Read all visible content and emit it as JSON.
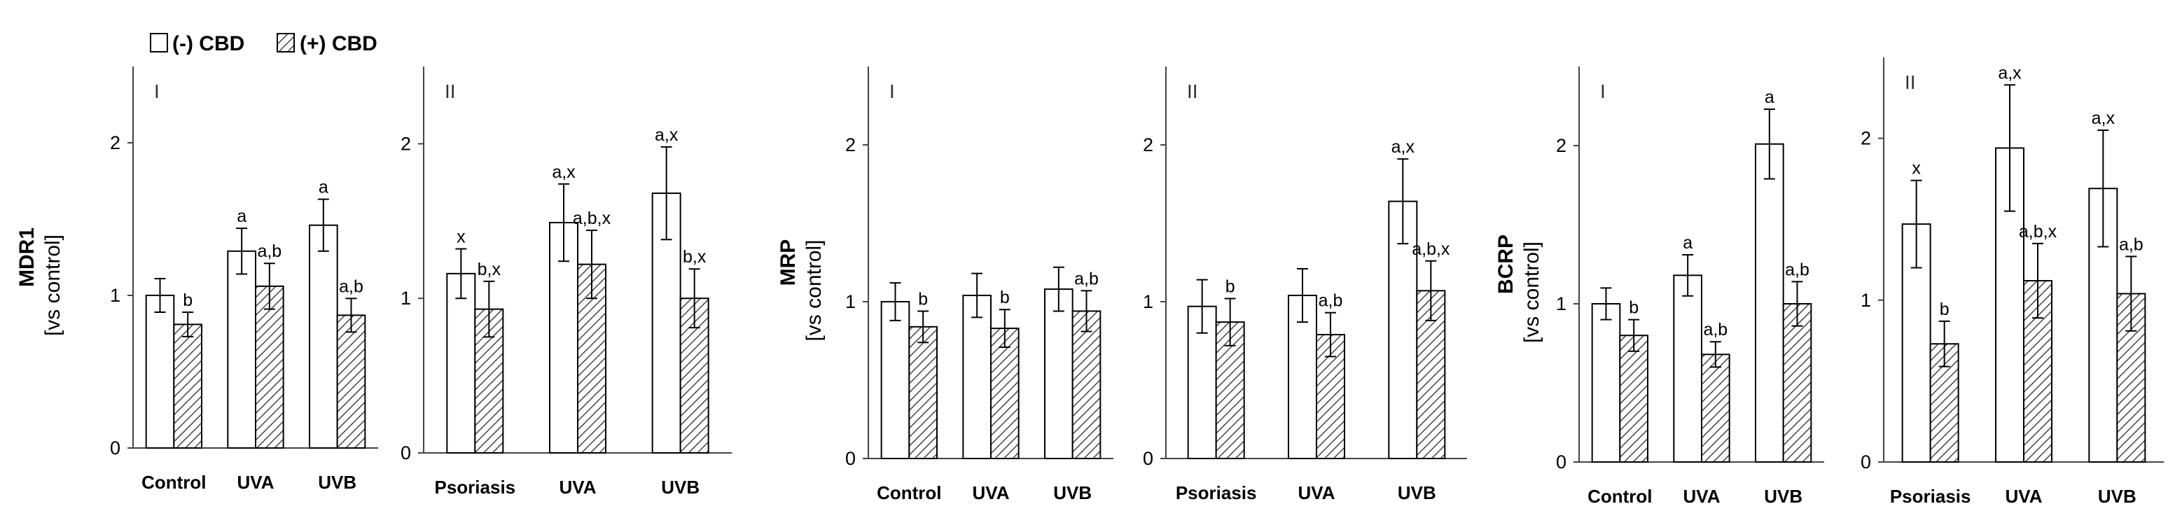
{
  "legend": {
    "neg_label": "(-) CBD",
    "pos_label": "(+) CBD"
  },
  "colors": {
    "neg_fill": "#ffffff",
    "pos_hatch": "#444444",
    "stroke": "#000000",
    "axis": "#444444"
  },
  "y_unit": "[vs control]",
  "chart_data": [
    {
      "type": "bar",
      "title": "MDR1 I",
      "panel": "I",
      "ylabel": "MDR1",
      "show_ylabel": true,
      "categories": [
        "Control",
        "UVA",
        "UVB"
      ],
      "ylim": [
        0,
        2.5
      ],
      "yticks": [
        "0",
        "1",
        "2"
      ],
      "series": [
        {
          "name": "(-) CBD",
          "values": [
            1.0,
            1.29,
            1.46
          ],
          "errors": [
            0.11,
            0.15,
            0.17
          ],
          "labels": [
            "",
            "a",
            "a"
          ]
        },
        {
          "name": "(+) CBD",
          "values": [
            0.81,
            1.06,
            0.87
          ],
          "errors": [
            0.08,
            0.15,
            0.11
          ],
          "labels": [
            "b",
            "a,b",
            "a,b"
          ]
        }
      ]
    },
    {
      "type": "bar",
      "title": "MDR1 II",
      "panel": "II",
      "ylabel": "",
      "show_ylabel": false,
      "categories": [
        "Psoriasis",
        "UVA",
        "UVB"
      ],
      "ylim": [
        0,
        2.5
      ],
      "yticks": [
        "0",
        "1",
        "2"
      ],
      "series": [
        {
          "name": "(-) CBD",
          "values": [
            1.16,
            1.49,
            1.68
          ],
          "errors": [
            0.16,
            0.25,
            0.3
          ],
          "labels": [
            "x",
            "a,x",
            "a,x"
          ]
        },
        {
          "name": "(+) CBD",
          "values": [
            0.93,
            1.22,
            1.0
          ],
          "errors": [
            0.18,
            0.22,
            0.19
          ],
          "labels": [
            "b,x",
            "a,b,x",
            "b,x"
          ]
        }
      ]
    },
    {
      "type": "bar",
      "title": "MRP I",
      "panel": "I",
      "ylabel": "MRP",
      "show_ylabel": true,
      "categories": [
        "Control",
        "UVA",
        "UVB"
      ],
      "ylim": [
        0,
        2.5
      ],
      "yticks": [
        "0",
        "1",
        "2"
      ],
      "series": [
        {
          "name": "(-) CBD",
          "values": [
            1.0,
            1.04,
            1.08
          ],
          "errors": [
            0.12,
            0.14,
            0.14
          ],
          "labels": [
            "",
            "",
            ""
          ]
        },
        {
          "name": "(+) CBD",
          "values": [
            0.84,
            0.83,
            0.94
          ],
          "errors": [
            0.1,
            0.12,
            0.13
          ],
          "labels": [
            "b",
            "b",
            "a,b"
          ]
        }
      ]
    },
    {
      "type": "bar",
      "title": "MRP II",
      "panel": "II",
      "ylabel": "",
      "show_ylabel": false,
      "categories": [
        "Psoriasis",
        "UVA",
        "UVB"
      ],
      "ylim": [
        0,
        2.5
      ],
      "yticks": [
        "0",
        "1",
        "2"
      ],
      "series": [
        {
          "name": "(-) CBD",
          "values": [
            0.97,
            1.04,
            1.64
          ],
          "errors": [
            0.17,
            0.17,
            0.27
          ],
          "labels": [
            "",
            "",
            "a,x"
          ]
        },
        {
          "name": "(+) CBD",
          "values": [
            0.87,
            0.79,
            1.07
          ],
          "errors": [
            0.15,
            0.14,
            0.19
          ],
          "labels": [
            "b",
            "a,b",
            "a,b,x"
          ]
        }
      ]
    },
    {
      "type": "bar",
      "title": "BCRP I",
      "panel": "I",
      "ylabel": "BCRP",
      "show_ylabel": true,
      "categories": [
        "Control",
        "UVA",
        "UVB"
      ],
      "ylim": [
        0,
        2.5
      ],
      "yticks": [
        "0",
        "1",
        "2"
      ],
      "series": [
        {
          "name": "(-) CBD",
          "values": [
            1.0,
            1.18,
            2.01
          ],
          "errors": [
            0.1,
            0.13,
            0.22
          ],
          "labels": [
            "",
            "a",
            "a"
          ]
        },
        {
          "name": "(+) CBD",
          "values": [
            0.8,
            0.68,
            1.0
          ],
          "errors": [
            0.1,
            0.08,
            0.14
          ],
          "labels": [
            "b",
            "a,b",
            "a,b"
          ]
        }
      ]
    },
    {
      "type": "bar",
      "title": "BCRP II",
      "panel": "II",
      "ylabel": "",
      "show_ylabel": false,
      "categories": [
        "Psoriasis",
        "UVA",
        "UVB"
      ],
      "ylim": [
        0,
        2.5
      ],
      "yticks": [
        "0",
        "1",
        "2"
      ],
      "series": [
        {
          "name": "(-) CBD",
          "values": [
            1.47,
            1.94,
            1.69
          ],
          "errors": [
            0.27,
            0.39,
            0.36
          ],
          "labels": [
            "x",
            "a,x",
            "a,x"
          ]
        },
        {
          "name": "(+) CBD",
          "values": [
            0.73,
            1.12,
            1.04
          ],
          "errors": [
            0.14,
            0.23,
            0.23
          ],
          "labels": [
            "b",
            "a,b,x",
            "a,b"
          ]
        }
      ]
    }
  ]
}
